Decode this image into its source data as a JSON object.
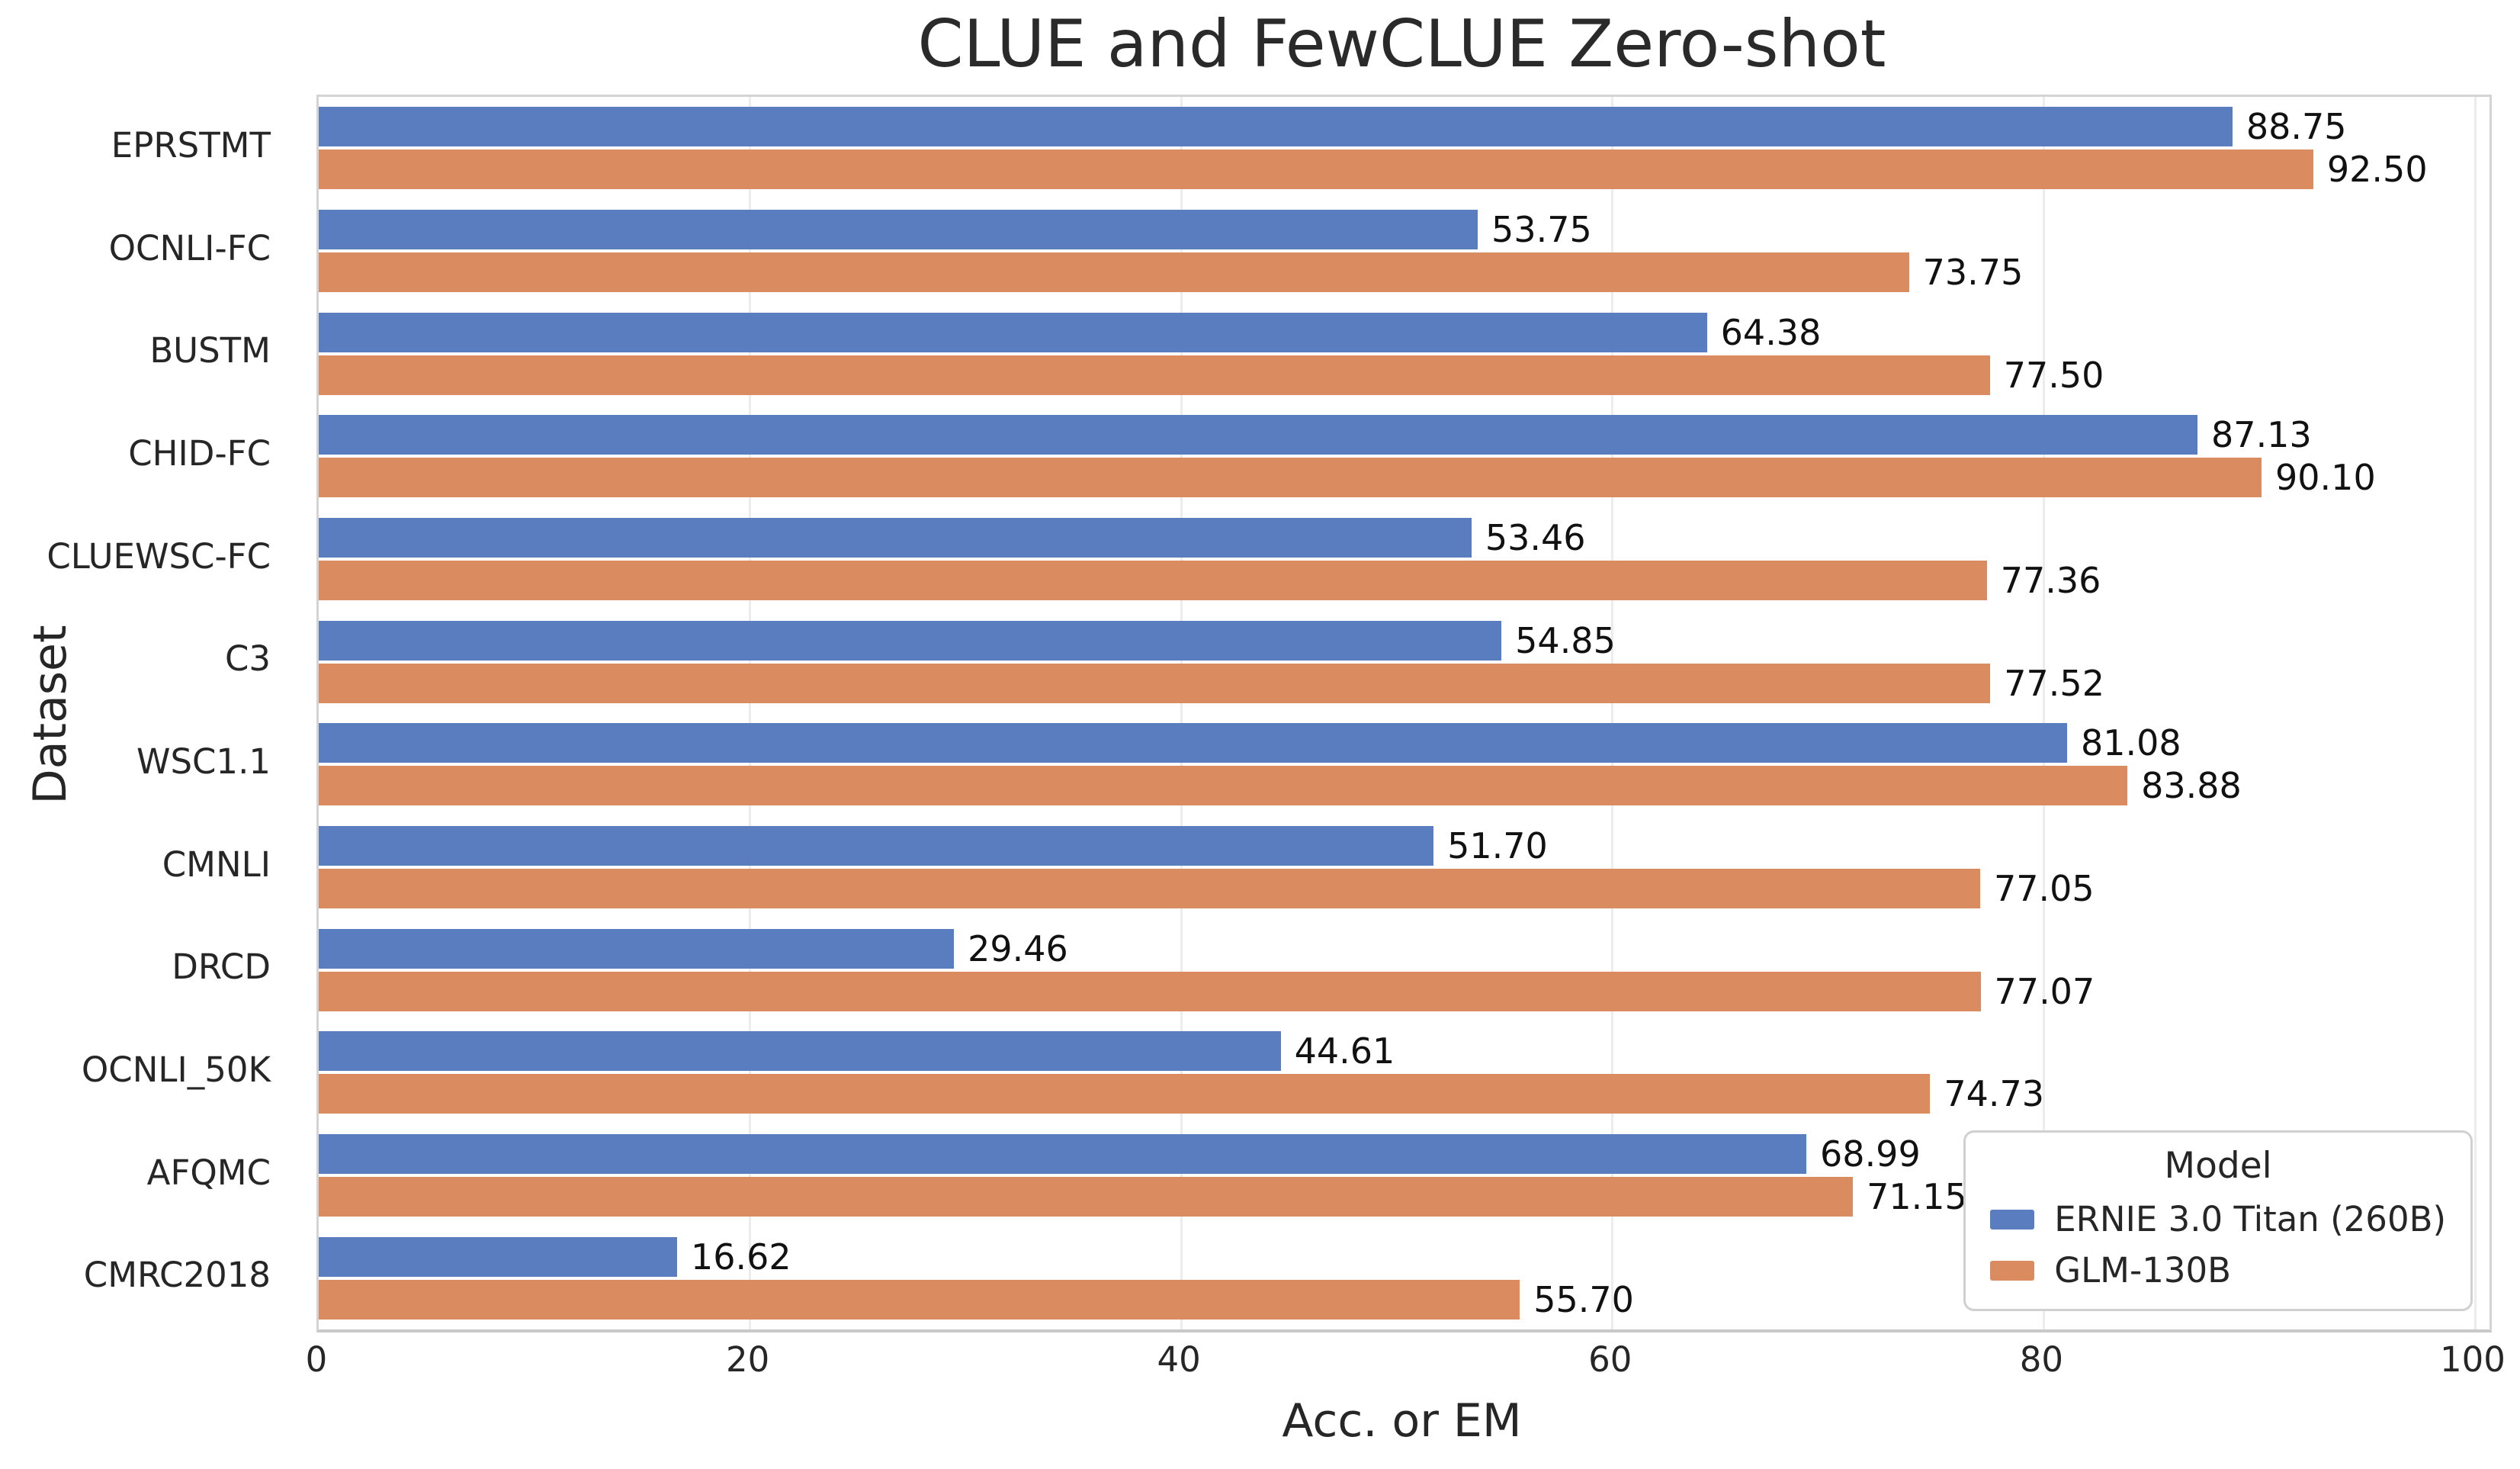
{
  "title": "CLUE and FewCLUE Zero-shot",
  "chart_data": {
    "type": "bar",
    "orientation": "horizontal",
    "title": "CLUE and FewCLUE Zero-shot",
    "xlabel": "Acc. or EM",
    "ylabel": "Dataset",
    "xlim": [
      0,
      100
    ],
    "xticks": [
      0,
      20,
      40,
      60,
      80,
      100
    ],
    "grid": "vertical",
    "categories": [
      "EPRSTMT",
      "OCNLI-FC",
      "BUSTM",
      "CHID-FC",
      "CLUEWSC-FC",
      "C3",
      "WSC1.1",
      "CMNLI",
      "DRCD",
      "OCNLI_50K",
      "AFQMC",
      "CMRC2018"
    ],
    "series": [
      {
        "name": "ERNIE 3.0 Titan (260B)",
        "color": "#597dbf",
        "values": [
          88.75,
          53.75,
          64.38,
          87.13,
          53.46,
          54.85,
          81.08,
          51.7,
          29.46,
          44.61,
          68.99,
          16.62
        ]
      },
      {
        "name": "GLM-130B",
        "color": "#da8b5f",
        "values": [
          92.5,
          73.75,
          77.5,
          90.1,
          77.36,
          77.52,
          83.88,
          77.05,
          77.07,
          74.73,
          71.15,
          55.7
        ]
      }
    ],
    "value_labels_decimals": 2,
    "legend": {
      "title": "Model",
      "position": "lower right"
    },
    "colors": {
      "grid": "#ececec",
      "spine": "#d4d4d4",
      "text": "#262626"
    }
  }
}
